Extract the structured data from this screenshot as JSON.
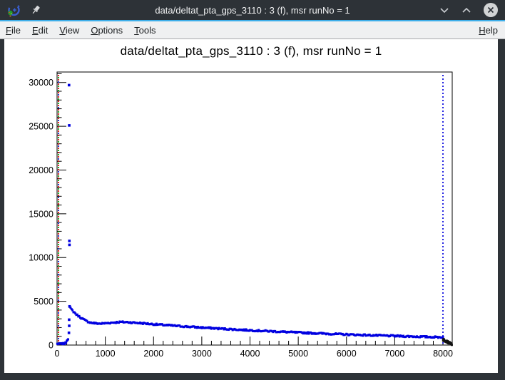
{
  "window": {
    "title": "data/deltat_pta_gps_3110 : 3 (f), msr runNo = 1",
    "icons": {
      "app": "root-logo",
      "pin": "pin",
      "minimize": "chevron-down",
      "maximize": "chevron-up",
      "close": "circle-x"
    }
  },
  "menubar": {
    "items": [
      {
        "label": "File"
      },
      {
        "label": "Edit"
      },
      {
        "label": "View"
      },
      {
        "label": "Options"
      },
      {
        "label": "Tools"
      }
    ],
    "help": {
      "label": "Help"
    }
  },
  "chart_data": {
    "type": "scatter",
    "title": "data/deltat_pta_gps_3110 : 3 (f), msr runNo = 1",
    "xlabel": "",
    "ylabel": "",
    "xlim": [
      0,
      8192
    ],
    "ylim": [
      0,
      31200
    ],
    "x_major_ticks": [
      0,
      1000,
      2000,
      3000,
      4000,
      5000,
      6000,
      7000,
      8000
    ],
    "x_minor_step": 200,
    "y_major_ticks": [
      0,
      5000,
      10000,
      15000,
      20000,
      25000,
      30000
    ],
    "y_minor_step": 1000,
    "grid": false,
    "legend": "none",
    "marker_color": "#0000e0",
    "vlines": [
      {
        "name": "t0-line-red",
        "x": 30,
        "color": "#dd0000",
        "dash": [
          2,
          4
        ],
        "offset": 0
      },
      {
        "name": "t0-line-green",
        "x": 30,
        "color": "#00a000",
        "dash": [
          2,
          4
        ],
        "offset": 3
      },
      {
        "name": "t0-line-blue",
        "x": 30,
        "color": "#2222dd",
        "dash": [
          2,
          16
        ],
        "offset": 9
      },
      {
        "name": "fit-range-end",
        "x": 8000,
        "color": "#0000dd",
        "dash": [
          2,
          3
        ],
        "offset": 0
      }
    ],
    "series": [
      {
        "name": "pre-t0-baseline",
        "render": "band",
        "color": "#0000e0",
        "size": 3,
        "step": 14,
        "jitter": 70,
        "curve": [
          [
            5,
            140
          ],
          [
            80,
            150
          ],
          [
            160,
            170
          ],
          [
            185,
            300
          ],
          [
            205,
            560
          ],
          [
            225,
            700
          ],
          [
            238,
            760
          ]
        ]
      },
      {
        "name": "prompt-peak",
        "render": "points",
        "color": "#0000e0",
        "size": 3.6,
        "points": [
          [
            248,
            29700
          ],
          [
            252,
            25100
          ],
          [
            255,
            11900
          ],
          [
            257,
            11450
          ],
          [
            259,
            4420
          ],
          [
            250,
            2900
          ],
          [
            252,
            2200
          ],
          [
            246,
            1400
          ]
        ]
      },
      {
        "name": "data-histogram",
        "render": "band",
        "color": "#0000e0",
        "size": 3,
        "step": 20,
        "jitter": 85,
        "curve": [
          [
            260,
            4350
          ],
          [
            300,
            4050
          ],
          [
            400,
            3500
          ],
          [
            500,
            3100
          ],
          [
            600,
            2760
          ],
          [
            700,
            2560
          ],
          [
            800,
            2480
          ],
          [
            900,
            2450
          ],
          [
            1000,
            2490
          ],
          [
            1150,
            2570
          ],
          [
            1300,
            2630
          ],
          [
            1450,
            2620
          ],
          [
            1600,
            2560
          ],
          [
            1800,
            2480
          ],
          [
            2000,
            2380
          ],
          [
            2250,
            2280
          ],
          [
            2500,
            2180
          ],
          [
            2750,
            2090
          ],
          [
            3000,
            2000
          ],
          [
            3500,
            1840
          ],
          [
            4000,
            1690
          ],
          [
            4500,
            1560
          ],
          [
            5000,
            1430
          ],
          [
            5500,
            1320
          ],
          [
            6000,
            1210
          ],
          [
            6500,
            1120
          ],
          [
            7000,
            1040
          ],
          [
            7500,
            960
          ],
          [
            8000,
            890
          ]
        ]
      },
      {
        "name": "post-range-tail",
        "render": "band",
        "color": "#111111",
        "size": 3,
        "step": 5,
        "jitter": 110,
        "curve": [
          [
            8004,
            640
          ],
          [
            8050,
            500
          ],
          [
            8100,
            340
          ],
          [
            8150,
            190
          ],
          [
            8188,
            60
          ]
        ]
      }
    ]
  }
}
